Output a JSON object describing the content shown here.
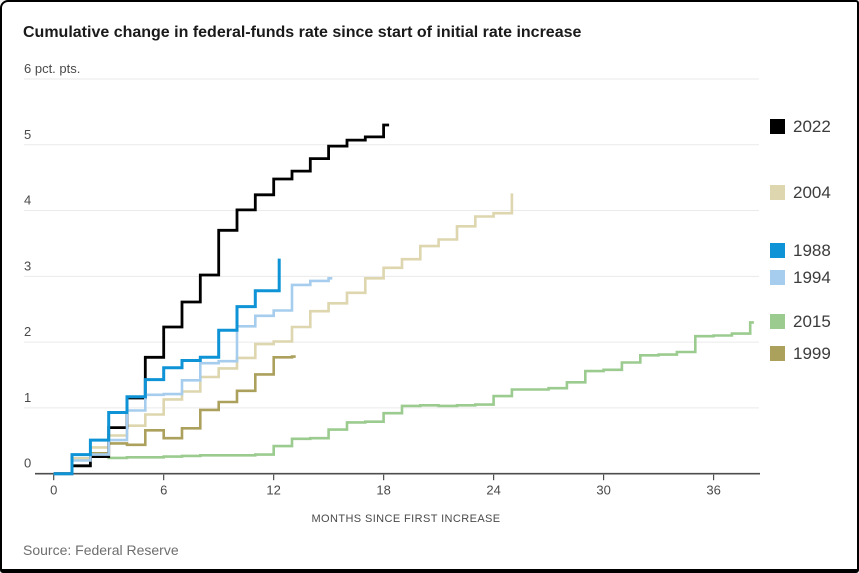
{
  "title": "Cumulative change in federal-funds rate since start of initial rate increase",
  "source": "Source: Federal Reserve",
  "colors": {
    "axis": "#4d4d4d",
    "grid": "#eaeaea",
    "s2022": "#000000",
    "s2004": "#ddd6ae",
    "s1988": "#0e93d6",
    "s1994": "#a6cded",
    "s2015": "#9bcb8f",
    "s1999": "#aca05d"
  },
  "chart_data": {
    "type": "line",
    "subtype": "step",
    "title": "Cumulative change in federal-funds rate since start of initial rate increase",
    "unit_label": "6 pct. pts.",
    "xlabel": "MONTHS SINCE FIRST INCREASE",
    "ylabel": "pct. pts.",
    "xlim": [
      0,
      38.5
    ],
    "ylim": [
      0,
      6
    ],
    "grid": true,
    "legend_position": "right",
    "x_ticks": [
      "0",
      "6",
      "12",
      "18",
      "24",
      "30",
      "36"
    ],
    "x_tick_values": [
      0,
      6,
      12,
      18,
      24,
      30,
      36
    ],
    "y_ticks": [
      {
        "value": 6,
        "label": "6 pct. pts."
      },
      {
        "value": 5,
        "label": "5"
      },
      {
        "value": 4,
        "label": "4"
      },
      {
        "value": 3,
        "label": "3"
      },
      {
        "value": 2,
        "label": "2"
      },
      {
        "value": 1,
        "label": "1"
      },
      {
        "value": 0,
        "label": "0"
      }
    ],
    "draw_order": [
      "2015",
      "1999",
      "2004",
      "2022",
      "1994",
      "1988"
    ],
    "series": [
      {
        "name": "2022",
        "color": "#000000",
        "stroke_width": 2.8,
        "end_month": 18.3,
        "points": [
          [
            0,
            0
          ],
          [
            1,
            0.12
          ],
          [
            2,
            0.26
          ],
          [
            3,
            0.7
          ],
          [
            4,
            1.15
          ],
          [
            5,
            1.77
          ],
          [
            6,
            2.23
          ],
          [
            7,
            2.61
          ],
          [
            8,
            3.02
          ],
          [
            9,
            3.7
          ],
          [
            10,
            4.01
          ],
          [
            11,
            4.24
          ],
          [
            12,
            4.48
          ],
          [
            13,
            4.6
          ],
          [
            14,
            4.79
          ],
          [
            15,
            4.98
          ],
          [
            16,
            5.07
          ],
          [
            17,
            5.12
          ],
          [
            18,
            5.3
          ]
        ]
      },
      {
        "name": "2004",
        "color": "#ddd6ae",
        "stroke_width": 2.6,
        "end_month": 25,
        "points": [
          [
            0,
            0
          ],
          [
            1,
            0.23
          ],
          [
            2,
            0.4
          ],
          [
            3,
            0.58
          ],
          [
            4,
            0.73
          ],
          [
            5,
            0.9
          ],
          [
            6,
            1.13
          ],
          [
            7,
            1.25
          ],
          [
            8,
            1.47
          ],
          [
            9,
            1.6
          ],
          [
            10,
            1.76
          ],
          [
            11,
            1.97
          ],
          [
            12,
            2.01
          ],
          [
            13,
            2.23
          ],
          [
            14,
            2.47
          ],
          [
            15,
            2.59
          ],
          [
            16,
            2.75
          ],
          [
            17,
            2.97
          ],
          [
            18,
            3.13
          ],
          [
            19,
            3.26
          ],
          [
            20,
            3.46
          ],
          [
            21,
            3.56
          ],
          [
            22,
            3.76
          ],
          [
            23,
            3.91
          ],
          [
            24,
            3.96
          ],
          [
            25,
            4.26
          ]
        ]
      },
      {
        "name": "1988",
        "color": "#0e93d6",
        "stroke_width": 3,
        "end_month": 12.3,
        "points": [
          [
            0,
            0
          ],
          [
            1,
            0.29
          ],
          [
            2,
            0.51
          ],
          [
            3,
            0.93
          ],
          [
            4,
            1.17
          ],
          [
            5,
            1.43
          ],
          [
            6,
            1.61
          ],
          [
            7,
            1.72
          ],
          [
            8,
            1.77
          ],
          [
            9,
            2.18
          ],
          [
            10,
            2.54
          ],
          [
            11,
            2.78
          ],
          [
            12.3,
            3.27
          ]
        ]
      },
      {
        "name": "1994",
        "color": "#a6cded",
        "stroke_width": 2.6,
        "end_month": 15.2,
        "points": [
          [
            0,
            0
          ],
          [
            1,
            0.2
          ],
          [
            2,
            0.29
          ],
          [
            3,
            0.51
          ],
          [
            4,
            0.96
          ],
          [
            5,
            1.2
          ],
          [
            6,
            1.21
          ],
          [
            7,
            1.42
          ],
          [
            8,
            1.68
          ],
          [
            9,
            1.71
          ],
          [
            10,
            2.24
          ],
          [
            11,
            2.4
          ],
          [
            12,
            2.48
          ],
          [
            13,
            2.87
          ],
          [
            14,
            2.93
          ],
          [
            15,
            2.97
          ]
        ]
      },
      {
        "name": "2015",
        "color": "#9bcb8f",
        "stroke_width": 2.6,
        "end_month": 38.2,
        "points": [
          [
            0,
            0
          ],
          [
            1,
            0.22
          ],
          [
            2,
            0.26
          ],
          [
            3,
            0.24
          ],
          [
            4,
            0.25
          ],
          [
            5,
            0.25
          ],
          [
            6,
            0.26
          ],
          [
            7,
            0.27
          ],
          [
            8,
            0.28
          ],
          [
            9,
            0.28
          ],
          [
            10,
            0.28
          ],
          [
            11,
            0.29
          ],
          [
            12,
            0.42
          ],
          [
            13,
            0.53
          ],
          [
            14,
            0.54
          ],
          [
            15,
            0.67
          ],
          [
            16,
            0.78
          ],
          [
            17,
            0.79
          ],
          [
            18,
            0.92
          ],
          [
            19,
            1.03
          ],
          [
            20,
            1.04
          ],
          [
            21,
            1.03
          ],
          [
            22,
            1.04
          ],
          [
            23,
            1.05
          ],
          [
            24,
            1.18
          ],
          [
            25,
            1.28
          ],
          [
            26,
            1.28
          ],
          [
            27,
            1.3
          ],
          [
            28,
            1.39
          ],
          [
            29,
            1.56
          ],
          [
            30,
            1.58
          ],
          [
            31,
            1.69
          ],
          [
            32,
            1.8
          ],
          [
            33,
            1.81
          ],
          [
            34,
            1.85
          ],
          [
            35,
            2.09
          ],
          [
            36,
            2.1
          ],
          [
            37,
            2.13
          ],
          [
            38,
            2.3
          ]
        ]
      },
      {
        "name": "1999",
        "color": "#aca05d",
        "stroke_width": 2.6,
        "end_month": 13.2,
        "points": [
          [
            0,
            0
          ],
          [
            1,
            0.23
          ],
          [
            2,
            0.31
          ],
          [
            3,
            0.46
          ],
          [
            4,
            0.44
          ],
          [
            5,
            0.66
          ],
          [
            6,
            0.54
          ],
          [
            7,
            0.69
          ],
          [
            8,
            0.97
          ],
          [
            9,
            1.09
          ],
          [
            10,
            1.26
          ],
          [
            11,
            1.51
          ],
          [
            12,
            1.77
          ],
          [
            13,
            1.78
          ]
        ]
      }
    ]
  },
  "legend": {
    "items": [
      {
        "name": "2022",
        "label": "2022",
        "color": "#000000"
      },
      {
        "name": "2004",
        "label": "2004",
        "color": "#ddd6ae"
      },
      {
        "name": "1988",
        "label": "1988",
        "color": "#0e93d6"
      },
      {
        "name": "1994",
        "label": "1994",
        "color": "#a6cded"
      },
      {
        "name": "2015",
        "label": "2015",
        "color": "#9bcb8f"
      },
      {
        "name": "1999",
        "label": "1999",
        "color": "#aca05d"
      }
    ]
  }
}
